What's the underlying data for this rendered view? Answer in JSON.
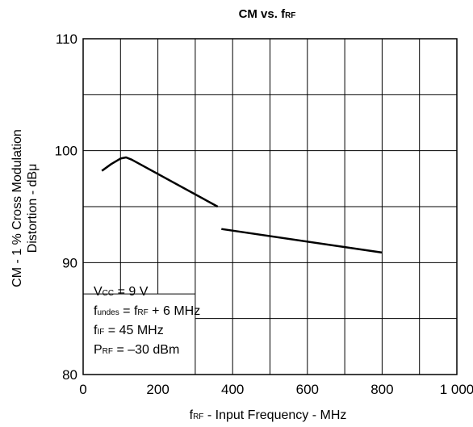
{
  "chart_data": {
    "type": "line",
    "title": {
      "main": "CM vs. f",
      "sub": "RF"
    },
    "xlabel": {
      "f": "f",
      "sub": "RF",
      "rest": " -  Input Frequency  - MHz"
    },
    "ylabel": {
      "line1": "CM -  1 % Cross Modulation",
      "line2": "Distortion  - dBμ"
    },
    "xlim": [
      0,
      1000
    ],
    "ylim": [
      80,
      110
    ],
    "x_ticks": [
      {
        "value": 0,
        "label": "0"
      },
      {
        "value": 200,
        "label": "200"
      },
      {
        "value": 400,
        "label": "400"
      },
      {
        "value": 600,
        "label": "600"
      },
      {
        "value": 800,
        "label": "800"
      },
      {
        "value": 1000,
        "label": "1 000"
      }
    ],
    "y_ticks": [
      {
        "value": 80,
        "label": "80"
      },
      {
        "value": 90,
        "label": "90"
      },
      {
        "value": 100,
        "label": "100"
      },
      {
        "value": 110,
        "label": "110"
      }
    ],
    "grid": true,
    "grid_x_step": 100,
    "grid_y_step": 5,
    "series": [
      {
        "segments": [
          [
            [
              50,
              98.2
            ],
            [
              75,
              98.8
            ],
            [
              100,
              99.3
            ],
            [
              115,
              99.4
            ],
            [
              130,
              99.2
            ],
            [
              360,
              95.0
            ]
          ],
          [
            [
              370,
              93.0
            ],
            [
              800,
              90.9
            ]
          ]
        ]
      }
    ],
    "annotation": {
      "position": "bottom-left",
      "lines": [
        [
          {
            "t": "V"
          },
          {
            "t": "CC",
            "sub": true
          },
          {
            "t": " = 9 V"
          }
        ],
        [
          {
            "t": "f"
          },
          {
            "t": "undes",
            "sub": true
          },
          {
            "t": " = f"
          },
          {
            "t": "RF",
            "sub": true
          },
          {
            "t": " + 6 MHz"
          }
        ],
        [
          {
            "t": "f"
          },
          {
            "t": "IF",
            "sub": true
          },
          {
            "t": " = 45 MHz"
          }
        ],
        [
          {
            "t": "P"
          },
          {
            "t": "RF",
            "sub": true
          },
          {
            "t": " = –30 dBm"
          }
        ]
      ]
    }
  }
}
